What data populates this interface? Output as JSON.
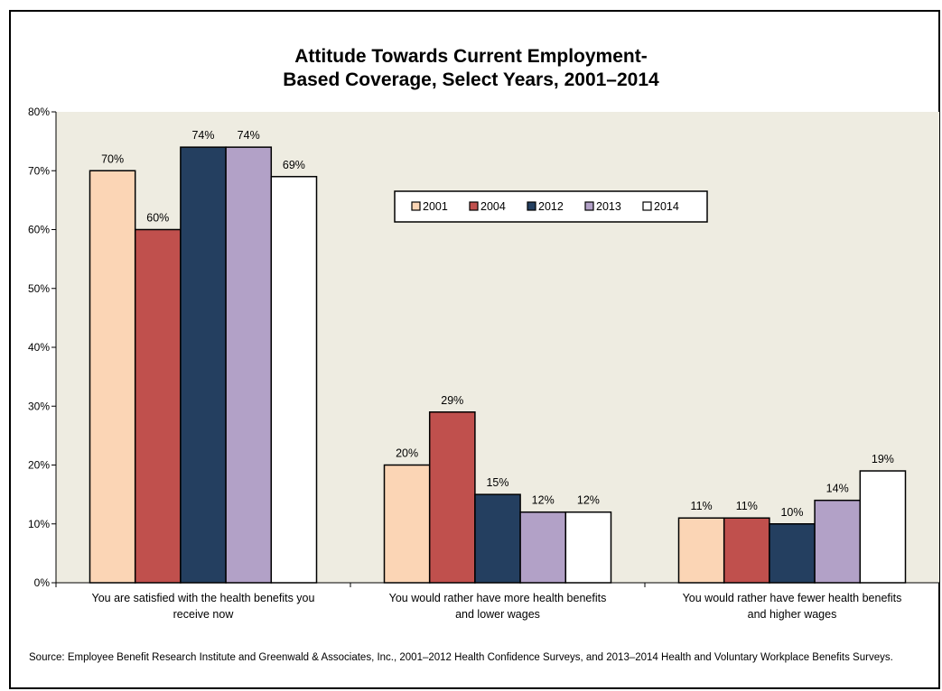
{
  "chart_data": {
    "type": "bar",
    "title_lines": [
      "Attitude Towards Current Employment-",
      "Based Coverage, Select Years, 2001–2014"
    ],
    "categories": [
      [
        "You are satisfied with the health benefits you",
        "receive now"
      ],
      [
        "You would rather have more health benefits",
        "and lower wages"
      ],
      [
        "You would rather have fewer health benefits",
        "and higher wages"
      ]
    ],
    "series": [
      {
        "name": "2001",
        "color": "#FBD5B5",
        "values": [
          70,
          20,
          11
        ]
      },
      {
        "name": "2004",
        "color": "#C0504D",
        "values": [
          60,
          29,
          11
        ]
      },
      {
        "name": "2012",
        "color": "#243F60",
        "values": [
          74,
          15,
          10
        ]
      },
      {
        "name": "2013",
        "color": "#B2A1C7",
        "values": [
          74,
          12,
          14
        ]
      },
      {
        "name": "2014",
        "color": "#FFFFFF",
        "values": [
          69,
          12,
          19
        ]
      }
    ],
    "value_suffix": "%",
    "y_ticks": [
      "0%",
      "10%",
      "20%",
      "30%",
      "40%",
      "50%",
      "60%",
      "70%",
      "80%"
    ],
    "ylim": [
      0,
      80
    ],
    "plot_background": "#EEECE1",
    "legend_position": "upper-center",
    "grid": false
  },
  "source_note": "Source: Employee Benefit Research Institute and Greenwald & Associates, Inc., 2001–2012 Health Confidence Surveys, and 2013–2014 Health and Voluntary Workplace Benefits Surveys."
}
